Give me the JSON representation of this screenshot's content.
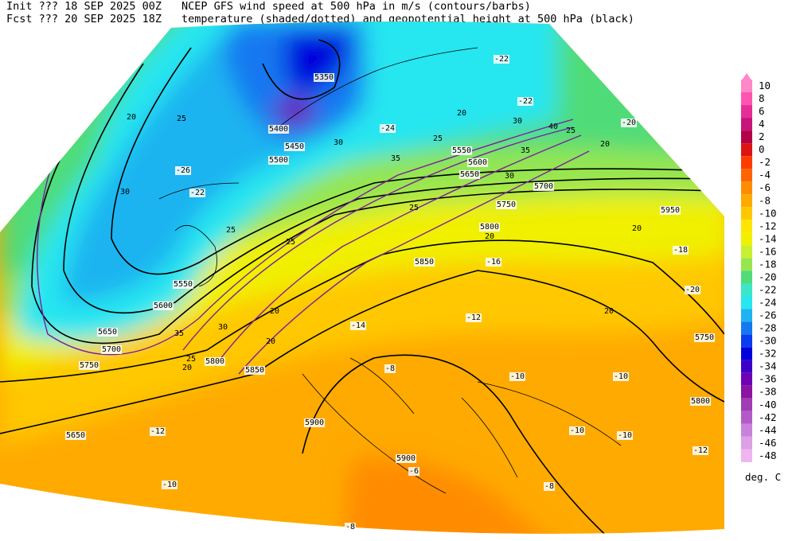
{
  "header": {
    "init": "Init  ??? 18 SEP 2025 00Z",
    "fcst": "Fcst ??? 20 SEP 2025 18Z",
    "line1": "NCEP GFS wind speed at 500 hPa in m/s (contours/barbs)",
    "line2": "temperature (shaded/dotted) and geopotential height at 500 hPa (black)"
  },
  "colorbar": {
    "levels": [
      10,
      8,
      6,
      4,
      2,
      0,
      -2,
      -4,
      -6,
      -8,
      -10,
      -12,
      -14,
      -16,
      -18,
      -20,
      -22,
      -24,
      -26,
      -28,
      -30,
      -32,
      -34,
      -36,
      -38,
      -40,
      -42,
      -44,
      -46,
      -48
    ],
    "colors": [
      "#ff88c8",
      "#ff55b0",
      "#e62e96",
      "#c8147d",
      "#b40046",
      "#dc1414",
      "#ff3c00",
      "#ff6400",
      "#ff8c00",
      "#ffaa00",
      "#ffc800",
      "#ffe600",
      "#f0f000",
      "#c8f032",
      "#96e650",
      "#50dc78",
      "#3ce6c8",
      "#28e6f0",
      "#1eb4f0",
      "#1478f0",
      "#0a3cf0",
      "#0000dc",
      "#3c00c8",
      "#6e00b4",
      "#8c14a0",
      "#a03cb4",
      "#b45ac8",
      "#c882dc",
      "#dca0e6",
      "#f0b4f0"
    ],
    "unit": "deg. C"
  },
  "map": {
    "height_labels": [
      "5350",
      "5400",
      "5450",
      "5500",
      "5550",
      "5600",
      "5650",
      "5700",
      "5750",
      "5800",
      "5850",
      "5900",
      "5900",
      "5650",
      "5950",
      "5750",
      "5800",
      "5850",
      "5800",
      "5750",
      "5700",
      "5650",
      "5600",
      "5550"
    ],
    "temp_labels": [
      "-8",
      "-10",
      "-12",
      "-10",
      "-10",
      "-12",
      "-14",
      "-6",
      "-8",
      "-8",
      "-10",
      "-10",
      "-20",
      "-18",
      "-22",
      "-26",
      "-22",
      "-22",
      "-24",
      "-20",
      "-16",
      "-12"
    ],
    "wind_labels": [
      "20",
      "25",
      "30",
      "25",
      "20",
      "25",
      "30",
      "35",
      "30",
      "25",
      "20",
      "35",
      "30",
      "25",
      "20",
      "20",
      "20",
      "25",
      "20",
      "20",
      "25",
      "20",
      "30",
      "35",
      "40"
    ]
  }
}
